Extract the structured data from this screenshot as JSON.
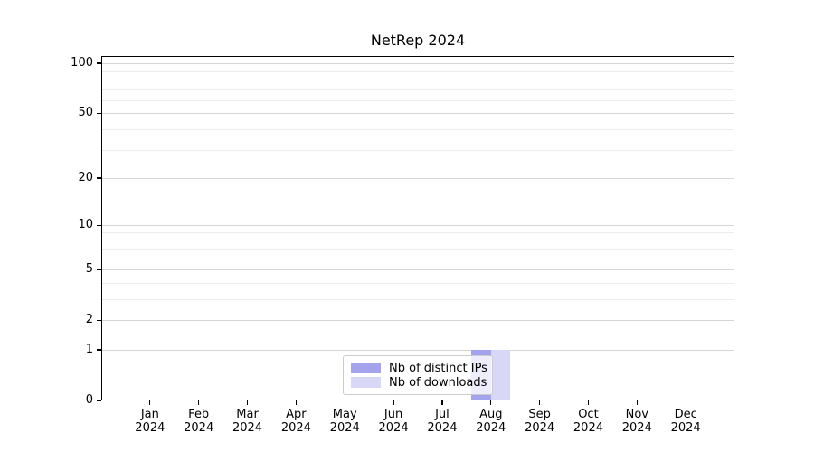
{
  "chart_data": {
    "type": "bar",
    "title": "NetRep 2024",
    "x_months": [
      "Jan",
      "Feb",
      "Mar",
      "Apr",
      "May",
      "Jun",
      "Jul",
      "Aug",
      "Sep",
      "Oct",
      "Nov",
      "Dec"
    ],
    "x_year": "2024",
    "series": [
      {
        "name": "Nb of distinct IPs",
        "color": "#a3a3ee",
        "values": [
          0,
          0,
          0,
          0,
          0,
          0,
          0,
          1,
          0,
          0,
          0,
          0
        ]
      },
      {
        "name": "Nb of downloads",
        "color": "#d8d8f6",
        "values": [
          0,
          0,
          0,
          0,
          0,
          0,
          0,
          1,
          0,
          0,
          0,
          0
        ]
      }
    ],
    "y_axis": {
      "scale": "log1p",
      "min": 0,
      "max": 110.7,
      "major_ticks": [
        0,
        1,
        2,
        5,
        10,
        20,
        50,
        100
      ],
      "minor_gridlines": [
        3,
        4,
        6,
        7,
        8,
        9,
        30,
        40,
        60,
        70,
        80,
        90
      ]
    },
    "grid": "horizontal",
    "legend": {
      "position": "lower-center"
    }
  }
}
